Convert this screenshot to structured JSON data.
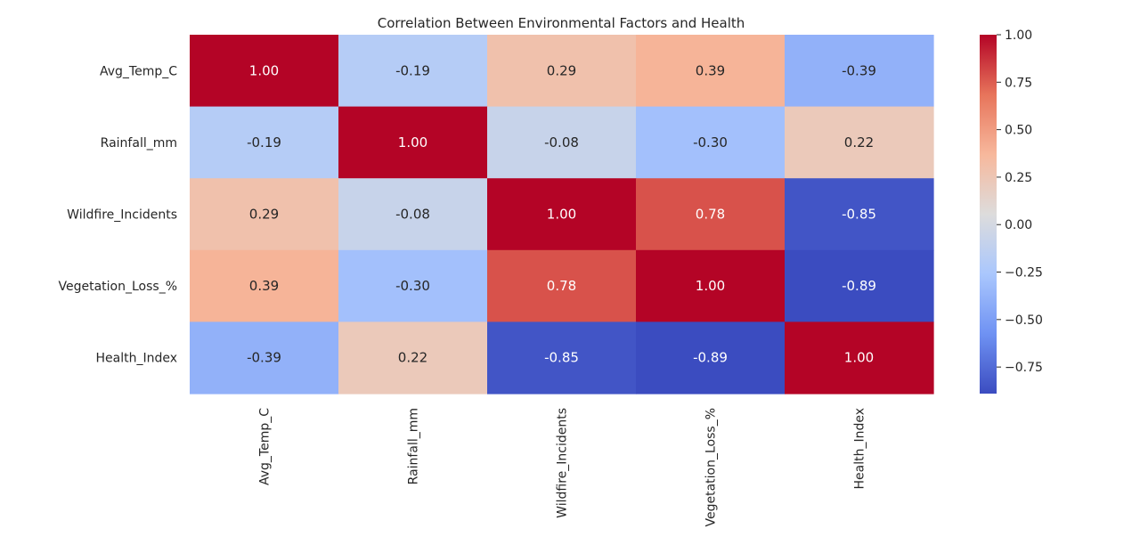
{
  "chart_data": {
    "type": "heatmap",
    "title": "Correlation Between Environmental Factors and Health",
    "xlabel": "",
    "ylabel": "",
    "rows": [
      "Avg_Temp_C",
      "Rainfall_mm",
      "Wildfire_Incidents",
      "Vegetation_Loss_%",
      "Health_Index"
    ],
    "columns": [
      "Avg_Temp_C",
      "Rainfall_mm",
      "Wildfire_Incidents",
      "Vegetation_Loss_%",
      "Health_Index"
    ],
    "values": [
      [
        1.0,
        -0.19,
        0.29,
        0.39,
        -0.39
      ],
      [
        -0.19,
        1.0,
        -0.08,
        -0.3,
        0.22
      ],
      [
        0.29,
        -0.08,
        1.0,
        0.78,
        -0.85
      ],
      [
        0.39,
        -0.3,
        0.78,
        1.0,
        -0.89
      ],
      [
        -0.39,
        0.22,
        -0.85,
        -0.89,
        1.0
      ]
    ],
    "value_labels": [
      [
        "1.00",
        "-0.19",
        "0.29",
        "0.39",
        "-0.39"
      ],
      [
        "-0.19",
        "1.00",
        "-0.08",
        "-0.30",
        "0.22"
      ],
      [
        "0.29",
        "-0.08",
        "1.00",
        "0.78",
        "-0.85"
      ],
      [
        "0.39",
        "-0.30",
        "0.78",
        "1.00",
        "-0.89"
      ],
      [
        "-0.39",
        "0.22",
        "-0.85",
        "-0.89",
        "1.00"
      ]
    ],
    "colormap": "coolwarm",
    "colormap_stops": [
      "#3b4cc0",
      "#6f92f3",
      "#aac7fd",
      "#dddcdc",
      "#f7b89c",
      "#e7745b",
      "#b40426"
    ],
    "color_range": [
      -0.89,
      1.0
    ],
    "colorbar": {
      "ticks": [
        1.0,
        0.75,
        0.5,
        0.25,
        0.0,
        -0.25,
        -0.5,
        -0.75
      ],
      "tick_labels": [
        "1.00",
        "0.75",
        "0.50",
        "0.25",
        "0.00",
        "−0.25",
        "−0.50",
        "−0.75"
      ],
      "position": "right"
    },
    "grid": false,
    "legend": "none"
  }
}
